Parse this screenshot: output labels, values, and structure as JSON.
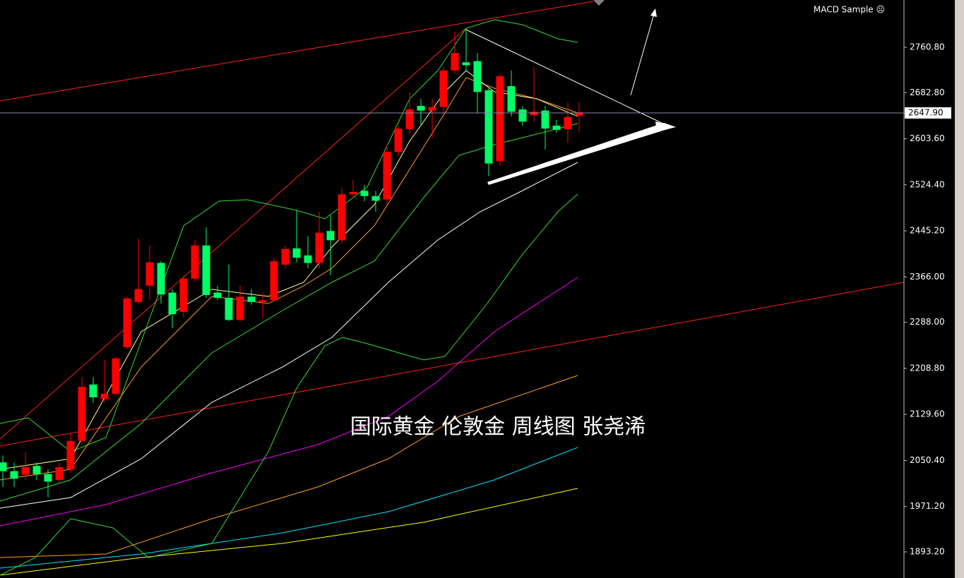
{
  "chart_data": {
    "type": "candlestick",
    "indicator": "MACD Sample ☹",
    "caption": "国际黄金 伦敦金 周线图 张尧浠",
    "current_price": {
      "value": 2647.9,
      "label": "2647.90"
    },
    "ylim": [
      1848.3,
      2842.1
    ],
    "yticks": [
      {
        "value": 2760.8,
        "label": "2760.80"
      },
      {
        "value": 2682.8,
        "label": "2682.80"
      },
      {
        "value": 2603.6,
        "label": "2603.60"
      },
      {
        "value": 2524.4,
        "label": "2524.40"
      },
      {
        "value": 2445.2,
        "label": "2445.20"
      },
      {
        "value": 2366,
        "label": "2366.00"
      },
      {
        "value": 2288,
        "label": "2288.00"
      },
      {
        "value": 2208.8,
        "label": "2208.80"
      },
      {
        "value": 2129.6,
        "label": "2129.60"
      },
      {
        "value": 2050.4,
        "label": "2050.40"
      },
      {
        "value": 1971.2,
        "label": "1971.20"
      },
      {
        "value": 1893.2,
        "label": "1893.20"
      }
    ],
    "up_color": "#ff0000",
    "down_color": "#00ff66",
    "open": [
      2047,
      2032,
      2026,
      2041,
      2027,
      2017,
      2035,
      2084,
      2181,
      2156,
      2165,
      2245,
      2323,
      2351,
      2390,
      2339,
      2306,
      2363,
      2420,
      2339,
      2330,
      2292,
      2332,
      2323,
      2326,
      2387,
      2415,
      2403,
      2390,
      2445,
      2429,
      2508,
      2514,
      2505,
      2499,
      2581,
      2620,
      2660,
      2652,
      2658,
      2721,
      2735,
      2737,
      2687,
      2565,
      2694,
      2654,
      2644,
      2652,
      2626,
      2620,
      2643
    ],
    "high": [
      2059,
      2047,
      2065,
      2047,
      2035,
      2047,
      2096,
      2193,
      2193,
      2223,
      2229,
      2332,
      2432,
      2420,
      2393,
      2345,
      2369,
      2429,
      2451,
      2351,
      2387,
      2351,
      2345,
      2339,
      2399,
      2420,
      2480,
      2436,
      2478,
      2472,
      2520,
      2533,
      2524,
      2514,
      2593,
      2626,
      2684,
      2672,
      2672,
      2727,
      2788,
      2794,
      2751,
      2690,
      2715,
      2721,
      2660,
      2727,
      2660,
      2636,
      2666,
      2666
    ],
    "low": [
      2005,
      2005,
      2017,
      2017,
      1987,
      2011,
      2029,
      2078,
      2150,
      2150,
      2162,
      2242,
      2320,
      2326,
      2320,
      2278,
      2296,
      2357,
      2330,
      2326,
      2290,
      2290,
      2318,
      2296,
      2323,
      2381,
      2391,
      2381,
      2381,
      2369,
      2423,
      2502,
      2496,
      2478,
      2490,
      2573,
      2612,
      2626,
      2605,
      2648,
      2715,
      2721,
      2648,
      2539,
      2557,
      2642,
      2626,
      2633,
      2585,
      2614,
      2597,
      2615
    ],
    "close": [
      2032,
      2019,
      2039,
      2027,
      2014,
      2039,
      2084,
      2177,
      2159,
      2165,
      2226,
      2329,
      2345,
      2391,
      2336,
      2302,
      2363,
      2420,
      2335,
      2330,
      2292,
      2332,
      2323,
      2326,
      2393,
      2414,
      2399,
      2390,
      2442,
      2429,
      2508,
      2512,
      2505,
      2497,
      2581,
      2621,
      2654,
      2652,
      2658,
      2721,
      2751,
      2730,
      2684,
      2561,
      2711,
      2650,
      2633,
      2650,
      2621,
      2619,
      2641,
      2649
    ]
  }
}
